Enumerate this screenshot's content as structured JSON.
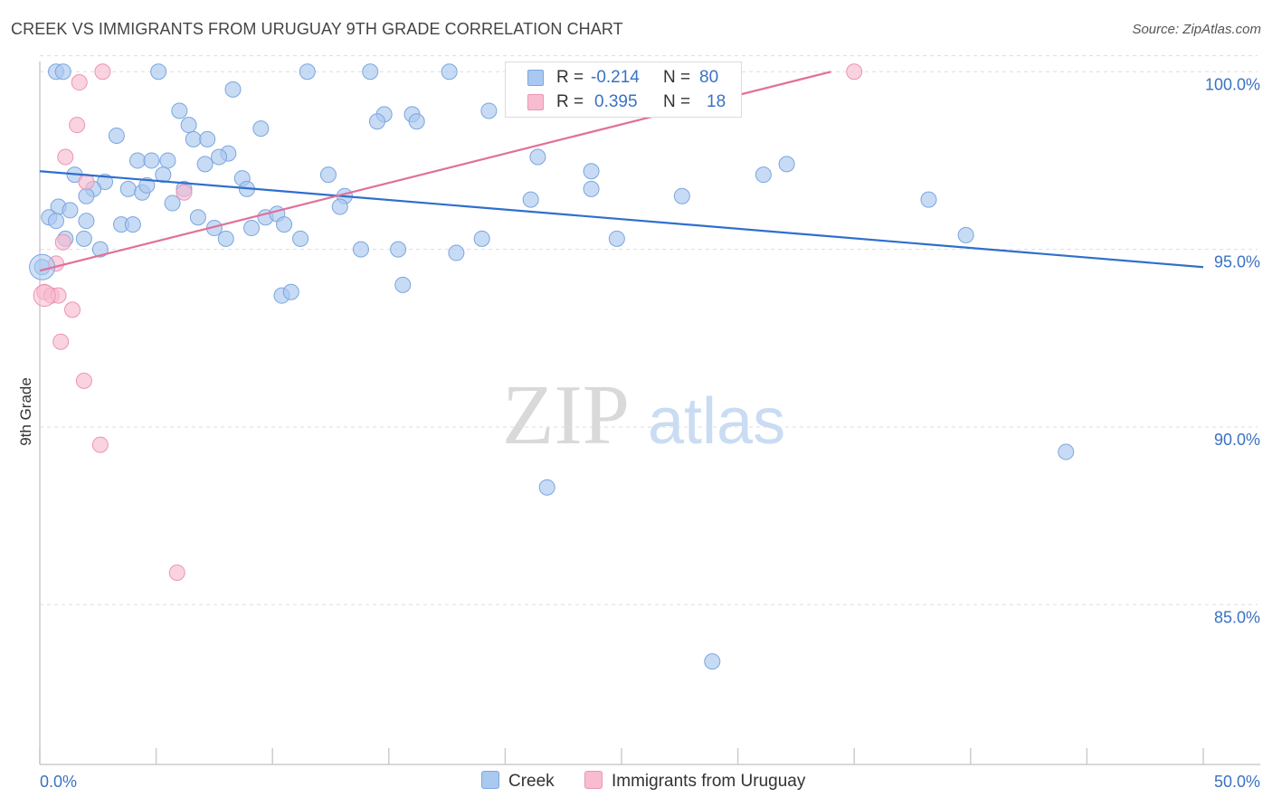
{
  "title": "CREEK VS IMMIGRANTS FROM URUGUAY 9TH GRADE CORRELATION CHART",
  "source": "Source: ZipAtlas.com",
  "watermark": {
    "zip": "ZIP",
    "atlas": "atlas"
  },
  "colors": {
    "creek_fill": "#aac8f0",
    "creek_stroke": "#7aa6de",
    "creek_line": "#2f6fcc",
    "uruguay_fill": "#f8bcd0",
    "uruguay_stroke": "#ec94b2",
    "uruguay_line": "#e07099",
    "tick_text": "#3a72c4",
    "grid": "#dddddd"
  },
  "legend": {
    "creek": {
      "r_label": "R =",
      "r_value": "-0.214",
      "n_label": "N =",
      "n_value": "80"
    },
    "uruguay": {
      "r_label": "R =",
      "r_value": "0.395",
      "n_label": "N =",
      "n_value": "18"
    }
  },
  "chart_data": {
    "type": "scatter",
    "title": "CREEK VS IMMIGRANTS FROM URUGUAY 9TH GRADE CORRELATION CHART",
    "xlabel": "",
    "ylabel": "9th Grade",
    "x_unit": "%",
    "xlim": [
      0,
      50
    ],
    "ylim": [
      80.5,
      101.0
    ],
    "x_tick_labels": [
      "0.0%",
      "50.0%"
    ],
    "y_ticks": [
      85,
      90,
      95,
      100
    ],
    "y_tick_labels": [
      "85.0%",
      "90.0%",
      "95.0%",
      "100.0%"
    ],
    "grid": "horizontal dashed",
    "legend_position": "top-center and bottom",
    "series": [
      {
        "name": "Creek",
        "color": "#aac8f0",
        "trend": {
          "x": [
            0,
            50
          ],
          "y": [
            97.2,
            94.5
          ]
        },
        "points": [
          [
            5.1,
            100.0
          ],
          [
            11.5,
            100.0
          ],
          [
            14.2,
            100.0
          ],
          [
            17.6,
            100.0
          ],
          [
            22.5,
            100.0
          ],
          [
            23.9,
            100.0
          ],
          [
            8.3,
            99.5
          ],
          [
            6.0,
            98.9
          ],
          [
            14.8,
            98.8
          ],
          [
            16.0,
            98.8
          ],
          [
            14.5,
            98.6
          ],
          [
            16.2,
            98.6
          ],
          [
            19.3,
            98.9
          ],
          [
            6.4,
            98.5
          ],
          [
            9.5,
            98.4
          ],
          [
            3.3,
            98.2
          ],
          [
            6.6,
            98.1
          ],
          [
            7.2,
            98.1
          ],
          [
            4.2,
            97.5
          ],
          [
            4.8,
            97.5
          ],
          [
            8.1,
            97.7
          ],
          [
            7.7,
            97.6
          ],
          [
            5.5,
            97.5
          ],
          [
            7.1,
            97.4
          ],
          [
            21.4,
            97.6
          ],
          [
            32.1,
            97.4
          ],
          [
            1.5,
            97.1
          ],
          [
            2.8,
            96.9
          ],
          [
            5.3,
            97.1
          ],
          [
            8.7,
            97.0
          ],
          [
            12.4,
            97.1
          ],
          [
            23.7,
            97.2
          ],
          [
            31.1,
            97.1
          ],
          [
            2.3,
            96.7
          ],
          [
            2.0,
            96.5
          ],
          [
            3.8,
            96.7
          ],
          [
            4.4,
            96.6
          ],
          [
            6.2,
            96.7
          ],
          [
            8.9,
            96.7
          ],
          [
            4.6,
            96.8
          ],
          [
            0.8,
            96.2
          ],
          [
            1.3,
            96.1
          ],
          [
            5.7,
            96.3
          ],
          [
            13.1,
            96.5
          ],
          [
            21.1,
            96.4
          ],
          [
            23.7,
            96.7
          ],
          [
            27.6,
            96.5
          ],
          [
            38.2,
            96.4
          ],
          [
            0.4,
            95.9
          ],
          [
            0.7,
            95.8
          ],
          [
            2.0,
            95.8
          ],
          [
            3.5,
            95.7
          ],
          [
            4.0,
            95.7
          ],
          [
            6.8,
            95.9
          ],
          [
            7.5,
            95.6
          ],
          [
            9.1,
            95.6
          ],
          [
            9.7,
            95.9
          ],
          [
            10.2,
            96.0
          ],
          [
            10.5,
            95.7
          ],
          [
            12.9,
            96.2
          ],
          [
            1.9,
            95.3
          ],
          [
            1.1,
            95.3
          ],
          [
            2.6,
            95.0
          ],
          [
            8.0,
            95.3
          ],
          [
            11.2,
            95.3
          ],
          [
            13.8,
            95.0
          ],
          [
            15.4,
            95.0
          ],
          [
            17.9,
            94.9
          ],
          [
            19.0,
            95.3
          ],
          [
            24.8,
            95.3
          ],
          [
            39.8,
            95.4
          ],
          [
            0.1,
            94.5
          ],
          [
            10.4,
            93.7
          ],
          [
            10.8,
            93.8
          ],
          [
            15.6,
            94.0
          ],
          [
            44.1,
            89.3
          ],
          [
            21.8,
            88.3
          ],
          [
            28.9,
            83.4
          ],
          [
            0.7,
            100.0
          ],
          [
            1.0,
            100.0
          ]
        ]
      },
      {
        "name": "Immigrants from Uruguay",
        "color": "#f8bcd0",
        "trend": {
          "x": [
            0,
            34
          ],
          "y": [
            94.4,
            100.0
          ]
        },
        "points": [
          [
            2.7,
            100.0
          ],
          [
            23.8,
            100.0
          ],
          [
            35.0,
            100.0
          ],
          [
            1.7,
            99.7
          ],
          [
            1.6,
            98.5
          ],
          [
            1.1,
            97.6
          ],
          [
            2.0,
            96.9
          ],
          [
            6.2,
            96.6
          ],
          [
            1.0,
            95.2
          ],
          [
            0.7,
            94.6
          ],
          [
            0.2,
            93.8
          ],
          [
            0.5,
            93.7
          ],
          [
            0.8,
            93.7
          ],
          [
            1.4,
            93.3
          ],
          [
            0.9,
            92.4
          ],
          [
            1.9,
            91.3
          ],
          [
            2.6,
            89.5
          ],
          [
            5.9,
            85.9
          ]
        ]
      }
    ]
  }
}
